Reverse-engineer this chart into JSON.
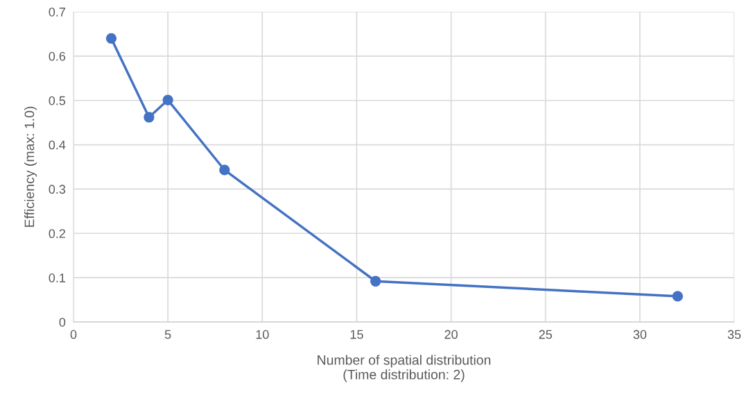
{
  "chart_data": {
    "type": "line",
    "xlabel": "Number of spatial distribution\n(Time distribution: 2)",
    "ylabel": "Efficiency (max: 1.0)",
    "x": [
      2,
      4,
      5,
      8,
      16,
      32
    ],
    "series": [
      {
        "color": "#4472c4",
        "values": [
          0.64,
          0.462,
          0.501,
          0.343,
          0.092,
          0.058
        ]
      }
    ],
    "xlim": [
      0,
      35
    ],
    "xticks": [
      0,
      5,
      10,
      15,
      20,
      25,
      30,
      35
    ],
    "ylim": [
      0,
      0.7
    ],
    "yticks": [
      0,
      0.1,
      0.2,
      0.3,
      0.4,
      0.5,
      0.6,
      0.7
    ],
    "grid": true,
    "marker": "circle",
    "line_style": "solid"
  }
}
